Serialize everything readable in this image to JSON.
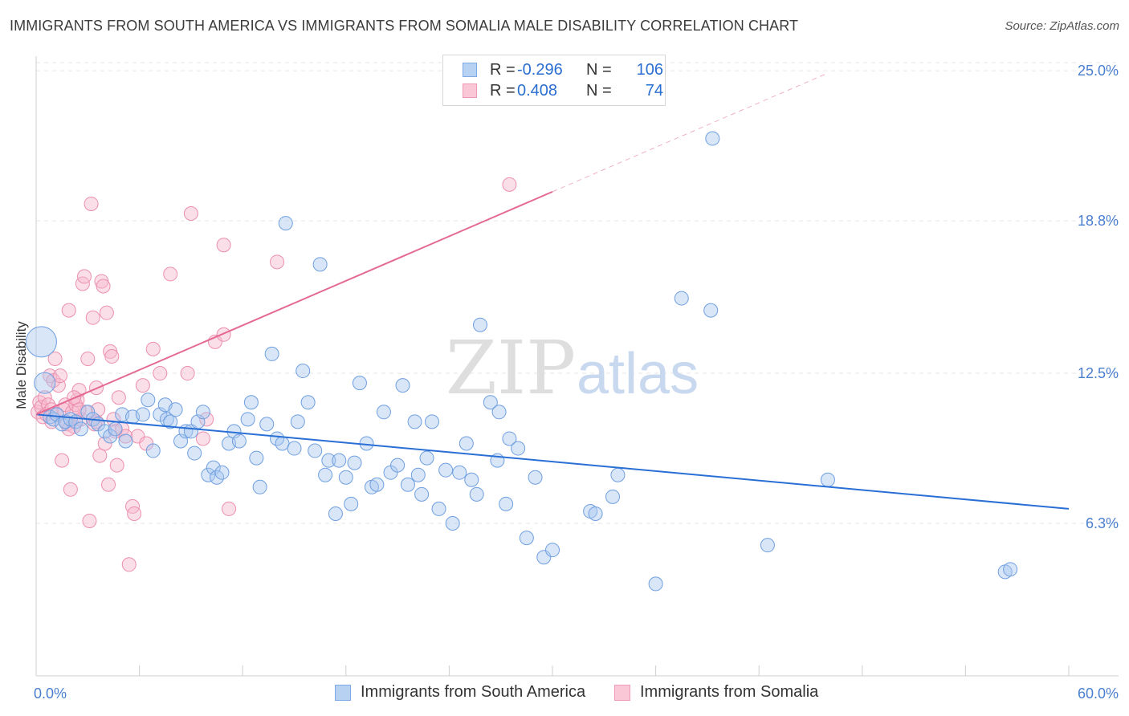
{
  "title": "IMMIGRANTS FROM SOUTH AMERICA VS IMMIGRANTS FROM SOMALIA MALE DISABILITY CORRELATION CHART",
  "source": "Source: ZipAtlas.com",
  "watermark": {
    "zip": "ZIP",
    "atlas": "atlas"
  },
  "legend": {
    "rows": [
      {
        "r_label": "R =",
        "r_value": "-0.296",
        "n_label": "N =",
        "n_value": "106"
      },
      {
        "r_label": "R =",
        "r_value": "0.408",
        "n_label": "N =",
        "n_value": "74"
      }
    ]
  },
  "bottom_legend": {
    "series1": "Immigrants from South America",
    "series2": "Immigrants from Somalia"
  },
  "colors": {
    "blue_fill": "#a9c8f0",
    "blue_stroke": "#6f9fe0",
    "blue_line": "#2a6fd6",
    "pink_fill": "#f6b8cb",
    "pink_stroke": "#ec8fae",
    "pink_line": "#e46a93",
    "tick_text": "#4a7fd0",
    "grid": "#e6e6e6"
  },
  "chart_data": {
    "type": "scatter",
    "title": "IMMIGRANTS FROM SOUTH AMERICA VS IMMIGRANTS FROM SOMALIA MALE DISABILITY CORRELATION CHART",
    "xlabel": "",
    "ylabel": "Male Disability",
    "xlim": [
      0,
      60
    ],
    "ylim": [
      0,
      25.6
    ],
    "x_tick_labels": [
      "0.0%",
      "60.0%"
    ],
    "y_ticks": [
      6.3,
      12.5,
      18.8,
      25.0
    ],
    "y_tick_labels": [
      "6.3%",
      "12.5%",
      "18.8%",
      "25.0%"
    ],
    "series": [
      {
        "name": "Immigrants from South America",
        "color": "#6f9fe0",
        "r": -0.296,
        "n": 106,
        "trend": {
          "x": [
            0,
            60
          ],
          "y": [
            10.8,
            6.9
          ]
        },
        "points": [
          [
            0.3,
            13.8
          ],
          [
            0.5,
            12.1
          ],
          [
            0.8,
            10.7
          ],
          [
            1.0,
            10.6
          ],
          [
            1.2,
            10.8
          ],
          [
            1.5,
            10.4
          ],
          [
            1.7,
            10.5
          ],
          [
            2.0,
            10.6
          ],
          [
            2.3,
            10.5
          ],
          [
            2.6,
            10.2
          ],
          [
            3.0,
            10.9
          ],
          [
            3.3,
            10.6
          ],
          [
            3.6,
            10.4
          ],
          [
            4.0,
            10.1
          ],
          [
            4.3,
            9.9
          ],
          [
            4.6,
            10.2
          ],
          [
            5.0,
            10.8
          ],
          [
            5.2,
            9.7
          ],
          [
            5.6,
            10.7
          ],
          [
            6.2,
            10.8
          ],
          [
            6.5,
            11.4
          ],
          [
            6.8,
            9.3
          ],
          [
            7.2,
            10.8
          ],
          [
            7.5,
            11.2
          ],
          [
            7.6,
            10.6
          ],
          [
            7.8,
            10.5
          ],
          [
            8.1,
            11.0
          ],
          [
            8.4,
            9.7
          ],
          [
            8.7,
            10.1
          ],
          [
            9.0,
            10.1
          ],
          [
            9.2,
            9.2
          ],
          [
            9.4,
            10.5
          ],
          [
            9.7,
            10.9
          ],
          [
            10.0,
            8.3
          ],
          [
            10.3,
            8.6
          ],
          [
            10.5,
            8.2
          ],
          [
            10.8,
            8.4
          ],
          [
            11.2,
            9.6
          ],
          [
            11.5,
            10.1
          ],
          [
            11.8,
            9.7
          ],
          [
            12.3,
            10.6
          ],
          [
            12.5,
            11.3
          ],
          [
            12.8,
            9.0
          ],
          [
            13.0,
            7.8
          ],
          [
            13.4,
            10.4
          ],
          [
            13.7,
            13.3
          ],
          [
            14.0,
            9.8
          ],
          [
            14.3,
            9.6
          ],
          [
            14.5,
            18.7
          ],
          [
            15.0,
            9.4
          ],
          [
            15.2,
            10.5
          ],
          [
            15.5,
            12.6
          ],
          [
            15.8,
            11.3
          ],
          [
            16.2,
            9.3
          ],
          [
            16.5,
            17.0
          ],
          [
            16.8,
            8.3
          ],
          [
            17.0,
            8.9
          ],
          [
            17.4,
            6.7
          ],
          [
            17.6,
            8.9
          ],
          [
            18.0,
            8.2
          ],
          [
            18.3,
            7.1
          ],
          [
            18.5,
            8.8
          ],
          [
            18.8,
            12.1
          ],
          [
            19.2,
            9.6
          ],
          [
            19.5,
            7.8
          ],
          [
            19.8,
            7.9
          ],
          [
            20.2,
            10.9
          ],
          [
            20.6,
            8.4
          ],
          [
            21.0,
            8.7
          ],
          [
            21.3,
            12.0
          ],
          [
            21.6,
            7.9
          ],
          [
            22.0,
            10.5
          ],
          [
            22.2,
            8.3
          ],
          [
            22.4,
            7.5
          ],
          [
            22.7,
            9.0
          ],
          [
            23.0,
            10.5
          ],
          [
            23.4,
            6.9
          ],
          [
            23.8,
            8.5
          ],
          [
            24.2,
            6.3
          ],
          [
            24.6,
            8.4
          ],
          [
            25.0,
            9.6
          ],
          [
            25.3,
            8.1
          ],
          [
            25.6,
            7.5
          ],
          [
            25.8,
            14.5
          ],
          [
            26.4,
            11.3
          ],
          [
            26.8,
            8.9
          ],
          [
            26.9,
            10.9
          ],
          [
            27.3,
            7.1
          ],
          [
            27.5,
            9.8
          ],
          [
            28.0,
            9.4
          ],
          [
            28.5,
            5.7
          ],
          [
            29.0,
            8.2
          ],
          [
            29.5,
            4.9
          ],
          [
            30.0,
            5.2
          ],
          [
            32.2,
            6.8
          ],
          [
            32.5,
            6.7
          ],
          [
            33.5,
            7.4
          ],
          [
            33.8,
            8.3
          ],
          [
            36.0,
            3.8
          ],
          [
            37.5,
            15.6
          ],
          [
            39.2,
            15.1
          ],
          [
            39.3,
            22.2
          ],
          [
            42.5,
            5.4
          ],
          [
            46.0,
            8.1
          ],
          [
            56.3,
            4.3
          ],
          [
            56.6,
            4.4
          ]
        ]
      },
      {
        "name": "Immigrants from Somalia",
        "color": "#ec8fae",
        "r": 0.408,
        "n": 74,
        "trend": {
          "x": [
            0,
            30
          ],
          "y": [
            10.8,
            20.0
          ]
        },
        "trend_dashed": {
          "x": [
            30,
            46
          ],
          "y": [
            20.0,
            24.9
          ]
        },
        "points": [
          [
            0.1,
            10.9
          ],
          [
            0.2,
            11.3
          ],
          [
            0.3,
            11.1
          ],
          [
            0.4,
            10.7
          ],
          [
            0.5,
            11.5
          ],
          [
            0.6,
            10.8
          ],
          [
            0.7,
            11.2
          ],
          [
            0.8,
            12.4
          ],
          [
            0.9,
            11.0
          ],
          [
            1.0,
            12.2
          ],
          [
            1.1,
            13.1
          ],
          [
            1.2,
            10.8
          ],
          [
            1.3,
            12.0
          ],
          [
            1.4,
            12.4
          ],
          [
            1.5,
            8.9
          ],
          [
            1.6,
            11.0
          ],
          [
            1.7,
            11.2
          ],
          [
            1.8,
            10.4
          ],
          [
            1.9,
            15.1
          ],
          [
            2.0,
            7.7
          ],
          [
            2.1,
            10.9
          ],
          [
            2.2,
            10.3
          ],
          [
            2.3,
            11.2
          ],
          [
            2.4,
            11.4
          ],
          [
            2.5,
            11.8
          ],
          [
            2.6,
            10.6
          ],
          [
            2.7,
            16.2
          ],
          [
            2.8,
            16.5
          ],
          [
            2.9,
            10.9
          ],
          [
            3.0,
            13.1
          ],
          [
            3.1,
            6.4
          ],
          [
            3.2,
            19.5
          ],
          [
            3.3,
            14.8
          ],
          [
            3.4,
            10.4
          ],
          [
            3.5,
            10.5
          ],
          [
            3.6,
            11.0
          ],
          [
            3.7,
            9.1
          ],
          [
            3.8,
            16.3
          ],
          [
            3.9,
            16.1
          ],
          [
            4.0,
            9.6
          ],
          [
            4.1,
            15.0
          ],
          [
            4.2,
            7.9
          ],
          [
            4.3,
            13.4
          ],
          [
            4.4,
            13.2
          ],
          [
            4.5,
            10.6
          ],
          [
            4.6,
            10.1
          ],
          [
            4.7,
            8.7
          ],
          [
            4.8,
            11.5
          ],
          [
            5.0,
            10.2
          ],
          [
            5.2,
            9.9
          ],
          [
            5.4,
            4.6
          ],
          [
            5.6,
            7.0
          ],
          [
            5.7,
            6.7
          ],
          [
            5.9,
            9.9
          ],
          [
            6.2,
            12.0
          ],
          [
            6.4,
            9.6
          ],
          [
            6.8,
            13.5
          ],
          [
            7.2,
            12.5
          ],
          [
            7.8,
            16.6
          ],
          [
            8.8,
            12.5
          ],
          [
            9.0,
            19.1
          ],
          [
            9.7,
            9.8
          ],
          [
            9.9,
            10.6
          ],
          [
            10.4,
            13.8
          ],
          [
            10.9,
            14.1
          ],
          [
            10.9,
            17.8
          ],
          [
            11.2,
            6.9
          ],
          [
            14.0,
            17.1
          ],
          [
            27.5,
            20.3
          ],
          [
            2.5,
            11.0
          ],
          [
            1.9,
            10.2
          ],
          [
            3.5,
            11.9
          ],
          [
            0.9,
            10.5
          ],
          [
            2.2,
            11.5
          ]
        ]
      }
    ]
  }
}
